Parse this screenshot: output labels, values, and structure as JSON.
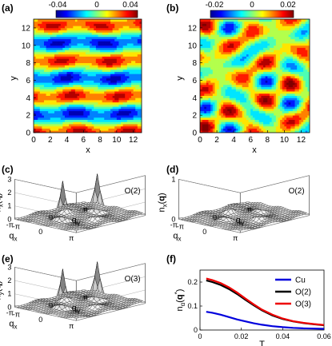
{
  "chart_data": [
    {
      "panel": "(a)",
      "type": "heatmap",
      "xlabel": "x",
      "ylabel": "y",
      "xticks": [
        "0",
        "2",
        "4",
        "6",
        "8",
        "10",
        "12"
      ],
      "yticks": [
        "0",
        "2",
        "4",
        "6",
        "8",
        "10",
        "12"
      ],
      "xlim": [
        0,
        13
      ],
      "ylim": [
        0,
        13
      ],
      "colorbar": {
        "ticks": [
          "-0.04",
          "0",
          "0.04"
        ],
        "range": [
          -0.05,
          0.05
        ]
      },
      "pattern": "horizontal stripes of alternating sign with period ~4 in y, weakly modulated along x",
      "grid_size": 13
    },
    {
      "panel": "(b)",
      "type": "heatmap",
      "xlabel": "x",
      "ylabel": "y",
      "xticks": [
        "0",
        "2",
        "4",
        "6",
        "8",
        "10",
        "12"
      ],
      "yticks": [
        "0",
        "2",
        "4",
        "6",
        "8",
        "10",
        "12"
      ],
      "xlim": [
        0,
        13
      ],
      "ylim": [
        0,
        13
      ],
      "colorbar": {
        "ticks": [
          "-0.02",
          "0",
          "0.02"
        ],
        "range": [
          -0.025,
          0.025
        ]
      },
      "pattern": "disordered patches, weaker and without stripe order",
      "grid_size": 13
    },
    {
      "panel": "(c)",
      "type": "surface",
      "zlabel": "n_x(q)",
      "legend": "O(2)",
      "zticks": [
        "0",
        "1",
        "2",
        "3"
      ],
      "qx_ticks": [
        "-π",
        "0",
        "π"
      ],
      "qy_ticks": [
        "-π",
        "0",
        "π"
      ],
      "xlabel": "q_x",
      "ylabel": "q_y",
      "peaks": [
        {
          "qx": -1.57,
          "qy": 0,
          "height": 2.9
        },
        {
          "qx": 1.57,
          "qy": 0,
          "height": 2.9
        },
        {
          "qx": 0,
          "qy": 1.57,
          "height": 0.6
        },
        {
          "qx": 0,
          "qy": -1.57,
          "height": 0.6
        }
      ]
    },
    {
      "panel": "(d)",
      "type": "surface",
      "zlabel": "n_x(q)",
      "legend": "O(2)",
      "zticks": [
        "0",
        "1"
      ],
      "qx_ticks": [
        "-π",
        "0",
        "π"
      ],
      "qy_ticks": [
        "-π",
        "0",
        "π"
      ],
      "xlabel": "q_x",
      "ylabel": "q_y",
      "peaks": [
        {
          "qx": -1.57,
          "qy": 0,
          "height": 0.25
        },
        {
          "qx": 1.57,
          "qy": 0,
          "height": 0.25
        },
        {
          "qx": 0,
          "qy": 1.57,
          "height": 0.2
        },
        {
          "qx": 0,
          "qy": -1.57,
          "height": 0.2
        }
      ]
    },
    {
      "panel": "(e)",
      "type": "surface",
      "zlabel": "n_y(q)",
      "legend": "O(3)",
      "zticks": [
        "0",
        "1",
        "2",
        "3"
      ],
      "qx_ticks": [
        "-π",
        "0",
        "π"
      ],
      "qy_ticks": [
        "-π",
        "0",
        "π"
      ],
      "xlabel": "q_x",
      "ylabel": "q_y",
      "peaks": [
        {
          "qx": -1.57,
          "qy": 0,
          "height": 2.9
        },
        {
          "qx": 1.57,
          "qy": 0,
          "height": 2.9
        },
        {
          "qx": 0,
          "qy": 1.57,
          "height": 0.5
        },
        {
          "qx": 0,
          "qy": -1.57,
          "height": 0.5
        }
      ]
    },
    {
      "panel": "(f)",
      "type": "line",
      "xlabel": "T",
      "ylabel": "n_α(q*)",
      "xlim": [
        0,
        0.06
      ],
      "ylim": [
        0,
        0.25
      ],
      "xticks": [
        "0",
        "0.02",
        "0.04",
        "0.06"
      ],
      "yticks": [
        "0",
        "0.1",
        "0.2"
      ],
      "x": [
        0.003,
        0.006,
        0.01,
        0.014,
        0.018,
        0.022,
        0.026,
        0.03,
        0.035,
        0.04,
        0.045,
        0.05,
        0.055,
        0.06
      ],
      "series": [
        {
          "name": "Cu",
          "color": "#0000dd",
          "values": [
            0.076,
            0.072,
            0.064,
            0.054,
            0.044,
            0.036,
            0.028,
            0.022,
            0.016,
            0.012,
            0.009,
            0.007,
            0.006,
            0.005
          ]
        },
        {
          "name": "O(2)",
          "color": "#000000",
          "values": [
            0.207,
            0.2,
            0.188,
            0.171,
            0.15,
            0.126,
            0.103,
            0.082,
            0.061,
            0.046,
            0.036,
            0.029,
            0.024,
            0.02
          ]
        },
        {
          "name": "O(3)",
          "color": "#ee0000",
          "values": [
            0.215,
            0.208,
            0.196,
            0.178,
            0.156,
            0.131,
            0.107,
            0.085,
            0.064,
            0.048,
            0.037,
            0.03,
            0.025,
            0.021
          ]
        }
      ]
    }
  ]
}
